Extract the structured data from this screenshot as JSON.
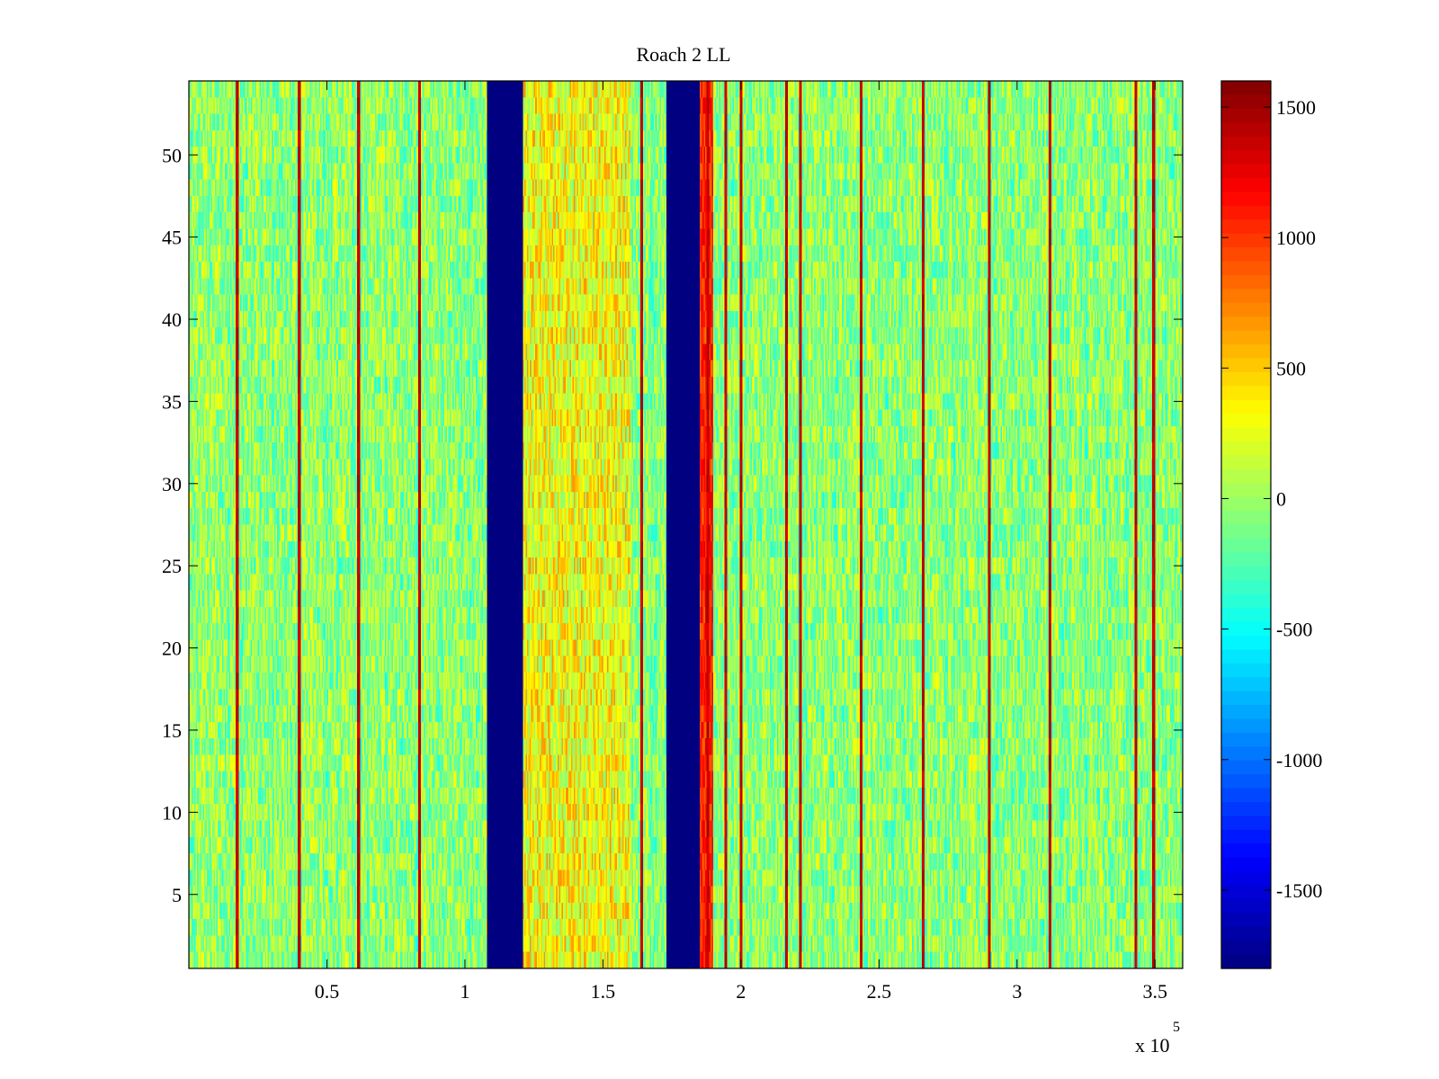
{
  "chart_data": {
    "type": "heatmap",
    "title": "Roach 2 LL",
    "xlabel": "",
    "ylabel": "",
    "x_multiplier_label": "x 10",
    "x_multiplier_exponent": "5",
    "xlim": [
      0,
      360000
    ],
    "ylim": [
      0.5,
      54.5
    ],
    "x_ticks": [
      50000,
      100000,
      150000,
      200000,
      250000,
      300000,
      350000
    ],
    "x_tick_labels": [
      "0.5",
      "1",
      "1.5",
      "2",
      "2.5",
      "3",
      "3.5"
    ],
    "y_ticks": [
      5,
      10,
      15,
      20,
      25,
      30,
      35,
      40,
      45,
      50
    ],
    "y_tick_labels": [
      "5",
      "10",
      "15",
      "20",
      "25",
      "30",
      "35",
      "40",
      "45",
      "50"
    ],
    "rows": 54,
    "colormap": "jet",
    "clim": [
      -1800,
      1600
    ],
    "colorbar_ticks": [
      1500,
      1000,
      500,
      0,
      -500,
      -1000,
      -1500
    ],
    "colorbar_tick_labels": [
      "1500",
      "1000",
      "500",
      "0",
      "-500",
      "-1000",
      "-1500"
    ],
    "background_level_range": [
      -400,
      300
    ],
    "bright_columns_x": [
      17500,
      40000,
      61500,
      83500,
      164000,
      188000,
      194500,
      200000,
      216500,
      221500,
      243500,
      266000,
      290000,
      312000,
      343000,
      349500
    ],
    "bright_column_level": 1500,
    "low_bands": [
      {
        "x_start": 108000,
        "x_end": 121000,
        "level": -1800
      },
      {
        "x_start": 173000,
        "x_end": 185000,
        "level": -1800
      }
    ],
    "warm_regions": [
      {
        "x_start": 121000,
        "x_end": 160000,
        "level_range": [
          -100,
          700
        ]
      },
      {
        "x_start": 185000,
        "x_end": 190000,
        "level_range": [
          800,
          1300
        ]
      }
    ]
  }
}
